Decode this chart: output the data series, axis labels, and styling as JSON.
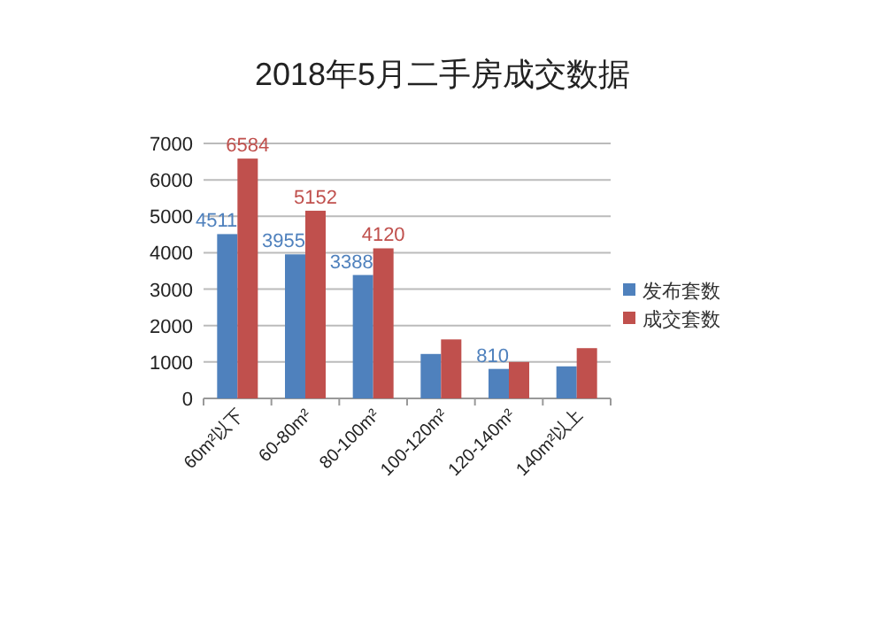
{
  "chart_data": {
    "type": "bar",
    "title": "2018年5月二手房成交数据",
    "categories": [
      "60m²以下",
      "60-80m²",
      "80-100m²",
      "100-120m²",
      "120-140m²",
      "140m²以上"
    ],
    "series": [
      {
        "name": "发布套数",
        "color": "#4f81bd",
        "values": [
          4511,
          3955,
          3388,
          1220,
          810,
          880
        ],
        "value_labels": [
          "4511",
          "3955",
          "3388",
          null,
          "810",
          null
        ]
      },
      {
        "name": "成交套数",
        "color": "#c0504d",
        "values": [
          6584,
          5152,
          4120,
          1620,
          1000,
          1380
        ],
        "value_labels": [
          "6584",
          "5152",
          "4120",
          null,
          null,
          null
        ]
      }
    ],
    "ylim": [
      0,
      7000
    ],
    "yticks": [
      0,
      1000,
      2000,
      3000,
      4000,
      5000,
      6000,
      7000
    ],
    "grid": "y",
    "legend": "right"
  }
}
